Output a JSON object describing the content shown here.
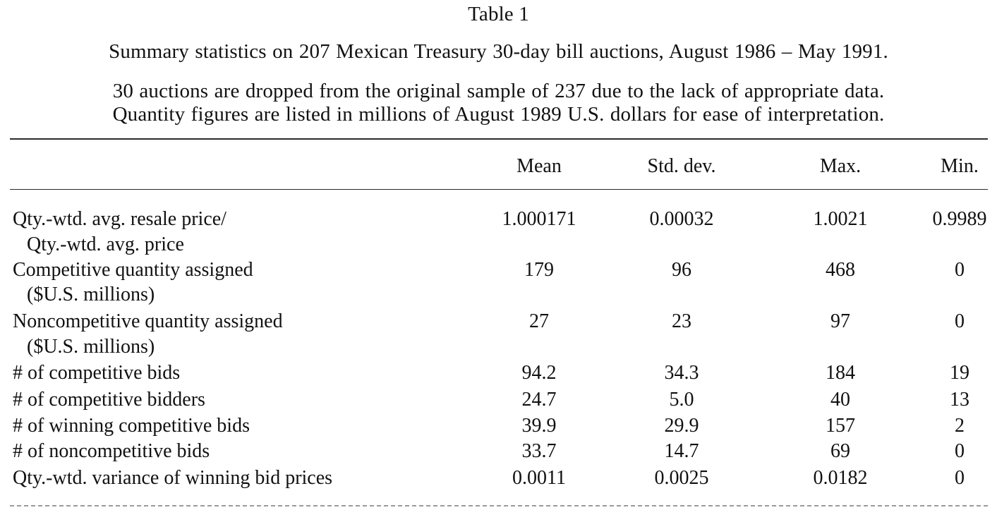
{
  "document": {
    "title": "Table 1",
    "subtitle": "Summary statistics on 207 Mexican Treasury 30-day bill auctions, August 1986 – May 1991.",
    "note_line_1": "30 auctions are dropped from the original sample of 237 due to the lack of appropriate data.",
    "note_line_2": "Quantity figures are listed in millions of August 1989 U.S. dollars for ease of interpretation."
  },
  "table": {
    "columns": [
      "Mean",
      "Std. dev.",
      "Max.",
      "Min."
    ],
    "rows": [
      {
        "label": "Qty.-wtd. avg. resale price/",
        "sublabel": "Qty.-wtd. avg. price",
        "values": [
          "1.000171",
          "0.00032",
          "1.0021",
          "0.9989"
        ]
      },
      {
        "label": "Competitive quantity assigned",
        "sublabel": "($U.S. millions)",
        "values": [
          "179",
          "96",
          "468",
          "0"
        ]
      },
      {
        "label": "Noncompetitive quantity assigned",
        "sublabel": "($U.S. millions)",
        "values": [
          "27",
          "23",
          "97",
          "0"
        ]
      },
      {
        "label": "# of competitive bids",
        "values": [
          "94.2",
          "34.3",
          "184",
          "19"
        ]
      },
      {
        "label": "# of competitive bidders",
        "values": [
          "24.7",
          "5.0",
          "40",
          "13"
        ]
      },
      {
        "label": "# of winning competitive bids",
        "values": [
          "39.9",
          "29.9",
          "157",
          "2"
        ]
      },
      {
        "label": "# of noncompetitive bids",
        "values": [
          "33.7",
          "14.7",
          "69",
          "0"
        ]
      },
      {
        "label": "Qty.-wtd. variance of winning bid prices",
        "values": [
          "0.0011",
          "0.0025",
          "0.0182",
          "0"
        ]
      }
    ]
  },
  "colors": {
    "text": "#111111",
    "rule": "#2b2b2b",
    "background": "#ffffff"
  }
}
